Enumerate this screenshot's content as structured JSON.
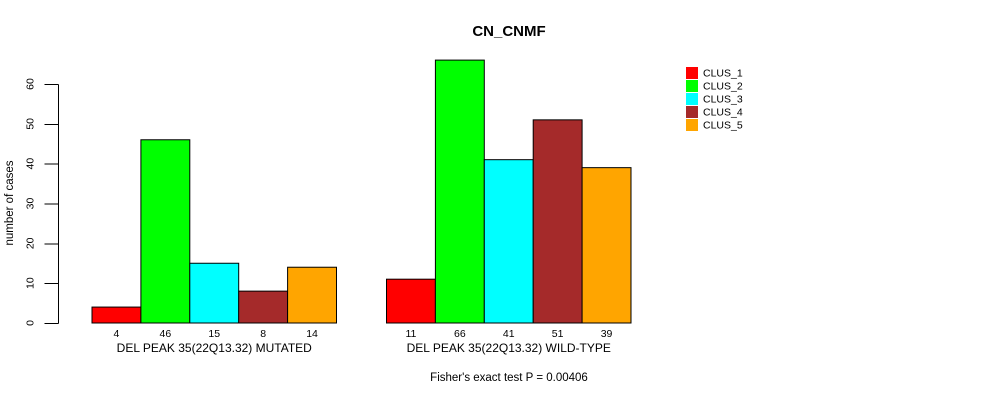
{
  "chart_data": {
    "type": "bar",
    "title": "CN_CNMF",
    "ylabel": "number of cases",
    "yticks": [
      0,
      10,
      20,
      30,
      40,
      50,
      60
    ],
    "ylim": [
      0,
      66
    ],
    "grid": false,
    "legend_position": "right-outside",
    "bar_value_labels": true,
    "categories": [
      {
        "label": "DEL PEAK 35(22Q13.32) MUTATED"
      },
      {
        "label": "DEL PEAK 35(22Q13.32) WILD-TYPE"
      }
    ],
    "series": [
      {
        "name": "CLUS_1",
        "color": "#FF0000",
        "values": [
          4,
          11
        ]
      },
      {
        "name": "CLUS_2",
        "color": "#00FF00",
        "values": [
          46,
          66
        ]
      },
      {
        "name": "CLUS_3",
        "color": "#00FFFF",
        "values": [
          15,
          41
        ]
      },
      {
        "name": "CLUS_4",
        "color": "#A52A2A",
        "values": [
          8,
          51
        ]
      },
      {
        "name": "CLUS_5",
        "color": "#FFA500",
        "values": [
          14,
          39
        ]
      }
    ],
    "footnote": "Fisher's exact test P = 0.00406"
  },
  "colors": {
    "background": "#FFFFFF",
    "axis": "#000000",
    "bar_border": "#000000",
    "text": "#000000"
  }
}
